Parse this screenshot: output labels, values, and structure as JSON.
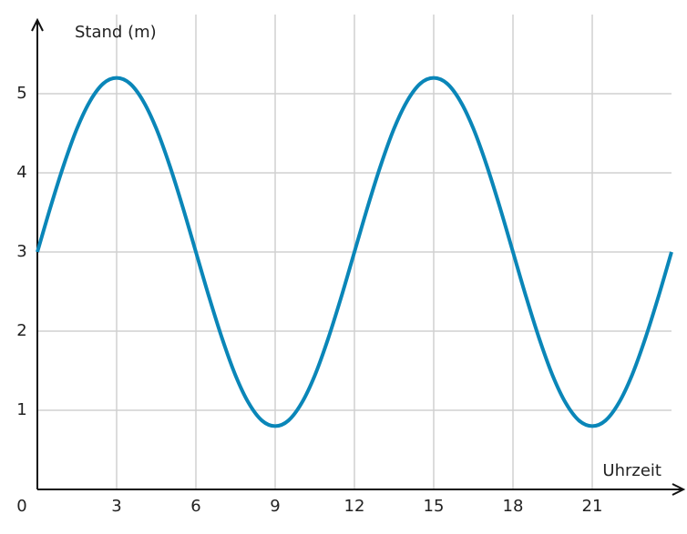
{
  "chart_data": {
    "type": "line",
    "y_label": "Stand (m)",
    "x_label": "Uhrzeit",
    "x": [
      0,
      0.5,
      1,
      1.5,
      2,
      2.5,
      3,
      3.5,
      4,
      4.5,
      5,
      5.5,
      6,
      6.5,
      7,
      7.5,
      8,
      8.5,
      9,
      9.5,
      10,
      10.5,
      11,
      11.5,
      12,
      12.5,
      13,
      13.5,
      14,
      14.5,
      15,
      15.5,
      16,
      16.5,
      17,
      17.5,
      18,
      18.5,
      19,
      19.5,
      20,
      20.5,
      21,
      21.5,
      22,
      22.5,
      23,
      23.5,
      24
    ],
    "values": [
      3,
      3.57,
      4.1,
      4.56,
      4.91,
      5.13,
      5.2,
      5.13,
      4.91,
      4.56,
      4.1,
      3.57,
      3,
      2.43,
      1.9,
      1.44,
      1.09,
      0.87,
      0.8,
      0.87,
      1.09,
      1.44,
      1.9,
      2.43,
      3,
      3.57,
      4.1,
      4.56,
      4.91,
      5.13,
      5.2,
      5.13,
      4.91,
      4.56,
      4.1,
      3.57,
      3,
      2.43,
      1.9,
      1.44,
      1.09,
      0.87,
      0.8,
      0.87,
      1.09,
      1.44,
      1.9,
      2.43,
      3
    ],
    "color": "#0a86b8",
    "xlim": [
      0,
      24
    ],
    "ylim": [
      0,
      6
    ],
    "xticks": [
      0,
      3,
      6,
      9,
      12,
      15,
      18,
      21
    ],
    "yticks": [
      1,
      2,
      3,
      4,
      5
    ],
    "grid": true
  }
}
